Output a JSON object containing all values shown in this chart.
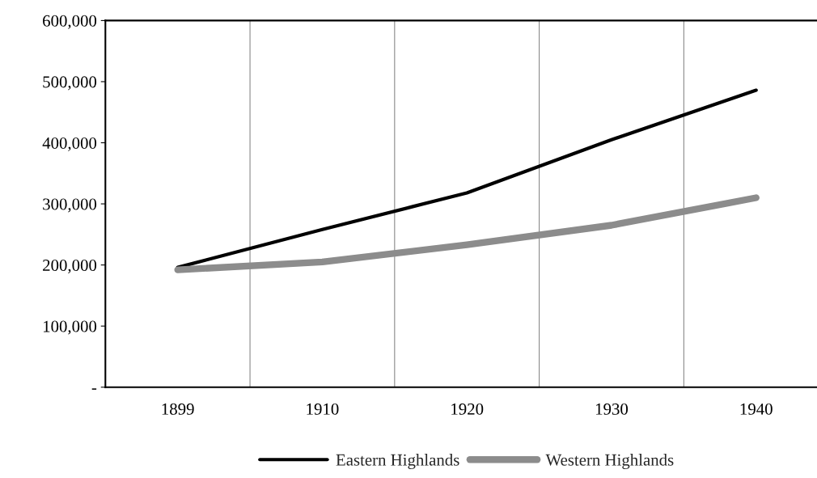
{
  "chart_data": {
    "type": "line",
    "categories": [
      "1899",
      "1910",
      "1920",
      "1930",
      "1940"
    ],
    "series": [
      {
        "name": "Eastern Highlands",
        "color": "#000000",
        "values": [
          196000,
          258000,
          318000,
          405000,
          486000
        ]
      },
      {
        "name": "Western Highlands",
        "color": "#8c8c8c",
        "values": [
          192000,
          205000,
          233000,
          265000,
          310000
        ]
      }
    ],
    "ylim": [
      0,
      600000
    ],
    "yticks": [
      {
        "value": 0,
        "label": "-"
      },
      {
        "value": 100000,
        "label": "100,000"
      },
      {
        "value": 200000,
        "label": "200,000"
      },
      {
        "value": 300000,
        "label": "300,000"
      },
      {
        "value": 400000,
        "label": "400,000"
      },
      {
        "value": 500000,
        "label": "500,000"
      },
      {
        "value": 600000,
        "label": "600,000"
      }
    ],
    "grid": "x",
    "legend": "bottom",
    "marker": "none",
    "line_style": "solid"
  }
}
